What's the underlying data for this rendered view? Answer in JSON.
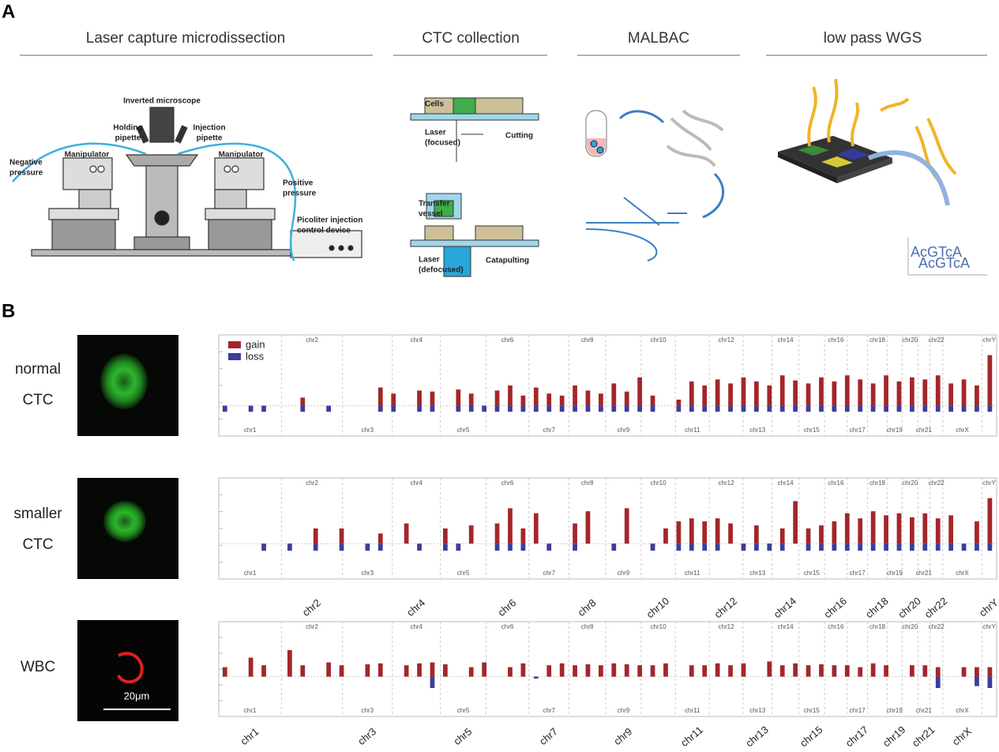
{
  "panel_a": {
    "label": "A",
    "sections": [
      "Laser capture microdissection",
      "CTC collection",
      "MALBAC",
      "low pass WGS"
    ],
    "microscope_labels": [
      [
        "Inverted microscope"
      ],
      [
        "Holding",
        "pipette"
      ],
      [
        "Injection",
        "pipette"
      ],
      [
        "Negative",
        "pressure"
      ],
      [
        "Manipulator"
      ],
      [
        "Manipulator"
      ],
      [
        "Positive",
        "pressure"
      ],
      [
        "Picoliter injection",
        "control device"
      ]
    ],
    "ctc_labels": [
      [
        "Cells"
      ],
      [
        "Laser",
        "(focused)"
      ],
      [
        "Cutting"
      ],
      [
        "Transfer",
        "vessel"
      ],
      [
        "Laser",
        "(defocused)"
      ],
      [
        "Catapulting"
      ]
    ],
    "wgs_logo": [
      "AcGTcA",
      "AcGTcA"
    ]
  },
  "panel_b": {
    "label": "B",
    "scale_bar": "20μm"
  },
  "chromosomes": {
    "top": [
      "chr2",
      "chr4",
      "chr6",
      "chr8",
      "chr10",
      "chr12",
      "chr14",
      "chr16",
      "chr18",
      "chr20",
      "chr22",
      "chrY"
    ],
    "bottom": [
      "chr1",
      "chr3",
      "chr5",
      "chr7",
      "chr9",
      "chr11",
      "chr13",
      "chr15",
      "chr17",
      "chr19",
      "chr21",
      "chrX"
    ]
  },
  "chart_data": [
    {
      "type": "bar",
      "label": [
        "normal",
        "CTC"
      ],
      "legend": true,
      "ylim": [
        -0.3,
        0.7
      ],
      "series": [
        {
          "name": "gain",
          "color": "#a3262a",
          "values": [
            0,
            0,
            0,
            0,
            0,
            0,
            0.08,
            0,
            0,
            0,
            0,
            0,
            0.18,
            0.12,
            0,
            0.15,
            0.14,
            0,
            0.16,
            0.12,
            0,
            0.15,
            0.2,
            0.1,
            0.18,
            0.12,
            0.1,
            0.2,
            0.15,
            0.12,
            0.22,
            0.14,
            0.28,
            0.1,
            0,
            0.06,
            0.24,
            0.2,
            0.26,
            0.22,
            0.28,
            0.24,
            0.2,
            0.3,
            0.25,
            0.22,
            0.28,
            0.24,
            0.3,
            0.26,
            0.22,
            0.3,
            0.24,
            0.28,
            0.26,
            0.3,
            0.22,
            0.26,
            0.2,
            0.5
          ]
        },
        {
          "name": "loss",
          "color": "#3b3d9a",
          "values": [
            -0.06,
            0,
            -0.06,
            -0.06,
            0,
            0,
            -0.06,
            0,
            -0.06,
            0,
            0,
            0,
            -0.06,
            -0.06,
            0,
            -0.06,
            -0.06,
            0,
            -0.06,
            -0.06,
            -0.06,
            -0.06,
            -0.06,
            -0.06,
            -0.06,
            -0.06,
            -0.06,
            -0.06,
            -0.06,
            -0.06,
            -0.06,
            -0.06,
            -0.06,
            -0.06,
            0,
            -0.06,
            -0.06,
            -0.06,
            -0.06,
            -0.06,
            -0.06,
            -0.06,
            -0.06,
            -0.06,
            -0.06,
            -0.06,
            -0.06,
            -0.06,
            -0.06,
            -0.06,
            -0.06,
            -0.06,
            -0.06,
            -0.06,
            -0.06,
            -0.06,
            -0.06,
            -0.06,
            -0.06,
            -0.06
          ]
        }
      ]
    },
    {
      "type": "bar",
      "label": [
        "smaller",
        "CTC"
      ],
      "ylim": [
        -0.35,
        0.65
      ],
      "series": [
        {
          "color": "#a3262a",
          "values": [
            0,
            0,
            0,
            0,
            0,
            0,
            0,
            0.15,
            0,
            0.15,
            0,
            0,
            0.1,
            0,
            0.2,
            0,
            0,
            0.15,
            0,
            0.18,
            0,
            0.2,
            0.35,
            0.15,
            0.3,
            0,
            0,
            0.2,
            0.32,
            0,
            0,
            0.35,
            0,
            0,
            0.15,
            0.22,
            0.25,
            0.22,
            0.25,
            0.2,
            0,
            0.18,
            0,
            0.15,
            0.42,
            0.15,
            0.18,
            0.22,
            0.3,
            0.25,
            0.32,
            0.28,
            0.3,
            0.26,
            0.3,
            0.25,
            0.28,
            0,
            0.22,
            0.45
          ]
        },
        {
          "color": "#3b3d9a",
          "values": [
            0,
            0,
            0,
            -0.07,
            0,
            -0.07,
            0,
            -0.07,
            0,
            -0.07,
            0,
            -0.07,
            -0.07,
            0,
            0,
            -0.07,
            0,
            -0.07,
            -0.07,
            0,
            0,
            -0.07,
            -0.07,
            -0.07,
            0,
            -0.07,
            0,
            -0.07,
            0,
            0,
            -0.07,
            0,
            0,
            -0.07,
            0,
            -0.07,
            -0.07,
            -0.07,
            -0.07,
            0,
            -0.07,
            -0.07,
            -0.07,
            -0.07,
            0,
            -0.07,
            -0.07,
            -0.07,
            -0.07,
            -0.07,
            -0.07,
            -0.07,
            -0.07,
            -0.07,
            -0.07,
            -0.07,
            -0.07,
            -0.07,
            -0.07,
            -0.07
          ]
        }
      ]
    },
    {
      "type": "bar",
      "label": [
        "WBC"
      ],
      "ylim": [
        -0.42,
        0.58
      ],
      "series": [
        {
          "color": "#a3262a",
          "values": [
            0.1,
            0,
            0.2,
            0.12,
            0,
            0.28,
            0.12,
            0,
            0.15,
            0.12,
            0,
            0.13,
            0.14,
            0,
            0.12,
            0.14,
            0.15,
            0.13,
            0,
            0.1,
            0.15,
            0,
            0.1,
            0.14,
            0,
            0.12,
            0.14,
            0.12,
            0.13,
            0.12,
            0.14,
            0.13,
            0.12,
            0.12,
            0.14,
            0,
            0.12,
            0.12,
            0.14,
            0.12,
            0.14,
            0,
            0.16,
            0.12,
            0.14,
            0.12,
            0.13,
            0.12,
            0.12,
            0.1,
            0.14,
            0.12,
            0,
            0.12,
            0.12,
            0.1,
            0,
            0.1,
            0.1,
            0.1
          ]
        },
        {
          "color": "#3b3d9a",
          "values": [
            0,
            0,
            0,
            0,
            0,
            0,
            0,
            0,
            0,
            0,
            0,
            0,
            0,
            0,
            0,
            0,
            -0.12,
            0,
            0,
            0,
            0,
            0,
            0,
            0,
            -0.02,
            0,
            0,
            0,
            0,
            0,
            0,
            0,
            0,
            0,
            0,
            0,
            0,
            0,
            0,
            0,
            0,
            0,
            0,
            0,
            0,
            0,
            0,
            0,
            0,
            0,
            0,
            0,
            0,
            0,
            0,
            -0.12,
            0,
            0,
            -0.1,
            -0.12
          ]
        }
      ]
    }
  ]
}
